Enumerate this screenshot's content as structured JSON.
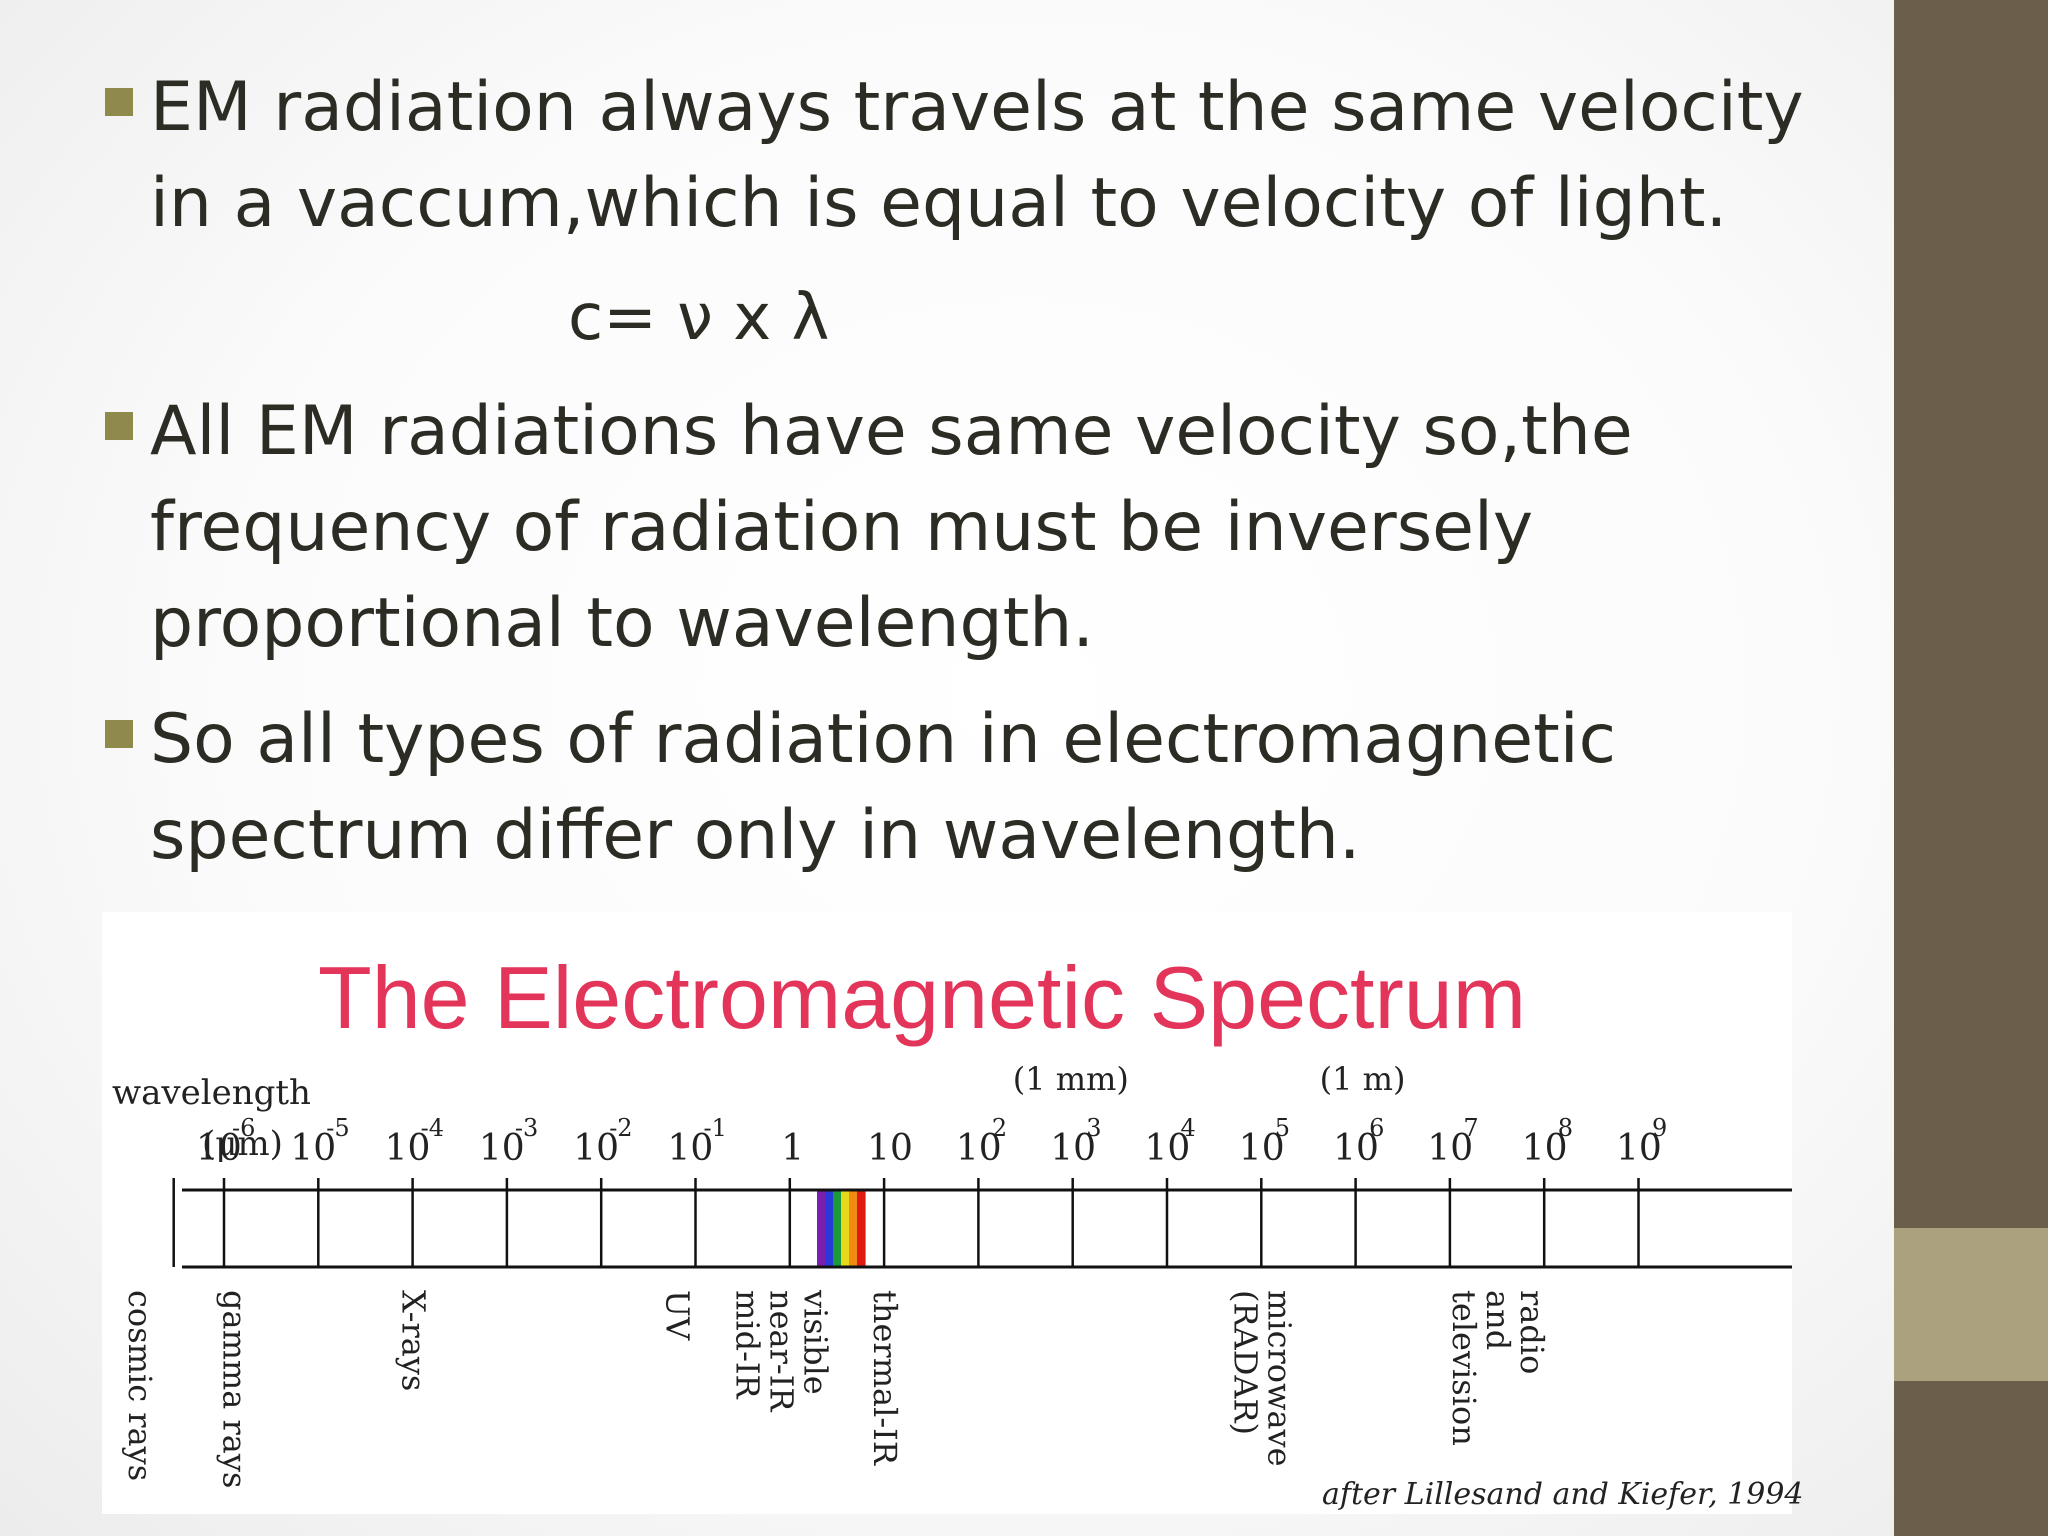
{
  "bullets": [
    {
      "text": "EM radiation always travels at the same velocity\nin a vaccum,which is equal to velocity of light."
    },
    {
      "text": "All EM radiations have same velocity so,the\nfrequency of radiation must be inversely\nproportional to wavelength."
    },
    {
      "text": "So all types of radiation in electromagnetic\nspectrum differ only in wavelength."
    }
  ],
  "formula": "c= ν x λ",
  "spectrum": {
    "title": "The Electromagnetic Spectrum",
    "axis_label": "wavelength",
    "unit_label": "(μm)",
    "mm_marker": "(1 mm)",
    "m_marker": "(1 m)",
    "ticks": [
      {
        "base": "10",
        "exp": "-6"
      },
      {
        "base": "10",
        "exp": "-5"
      },
      {
        "base": "10",
        "exp": "-4"
      },
      {
        "base": "10",
        "exp": "-3"
      },
      {
        "base": "10",
        "exp": "-2"
      },
      {
        "base": "10",
        "exp": "-1"
      },
      {
        "base": "1",
        "exp": ""
      },
      {
        "base": "10",
        "exp": ""
      },
      {
        "base": "10",
        "exp": "2"
      },
      {
        "base": "10",
        "exp": "3"
      },
      {
        "base": "10",
        "exp": "4"
      },
      {
        "base": "10",
        "exp": "5"
      },
      {
        "base": "10",
        "exp": "6"
      },
      {
        "base": "10",
        "exp": "7"
      },
      {
        "base": "10",
        "exp": "8"
      },
      {
        "base": "10",
        "exp": "9"
      }
    ],
    "regions": [
      {
        "lines": [
          "cosmic rays"
        ],
        "log_um": -6.9
      },
      {
        "lines": [
          "gamma rays"
        ],
        "log_um": -5.9
      },
      {
        "lines": [
          "X-rays"
        ],
        "log_um": -4.0
      },
      {
        "lines": [
          "UV"
        ],
        "log_um": -1.2
      },
      {
        "lines": [
          "visible",
          "near-IR",
          "mid-IR"
        ],
        "log_um": -0.1
      },
      {
        "lines": [
          "thermal-IR"
        ],
        "log_um": 1.0
      },
      {
        "lines": [
          "microwave",
          "(RADAR)"
        ],
        "log_um": 5.0
      },
      {
        "lines": [
          "radio",
          "and",
          "television"
        ],
        "log_um": 7.5
      }
    ],
    "visible_colors": [
      "#7a1fb0",
      "#2a3ad8",
      "#1a9a3a",
      "#e8d81a",
      "#f08a10",
      "#e01a10"
    ],
    "credit": "after Lillesand and Kiefer, 1994"
  }
}
